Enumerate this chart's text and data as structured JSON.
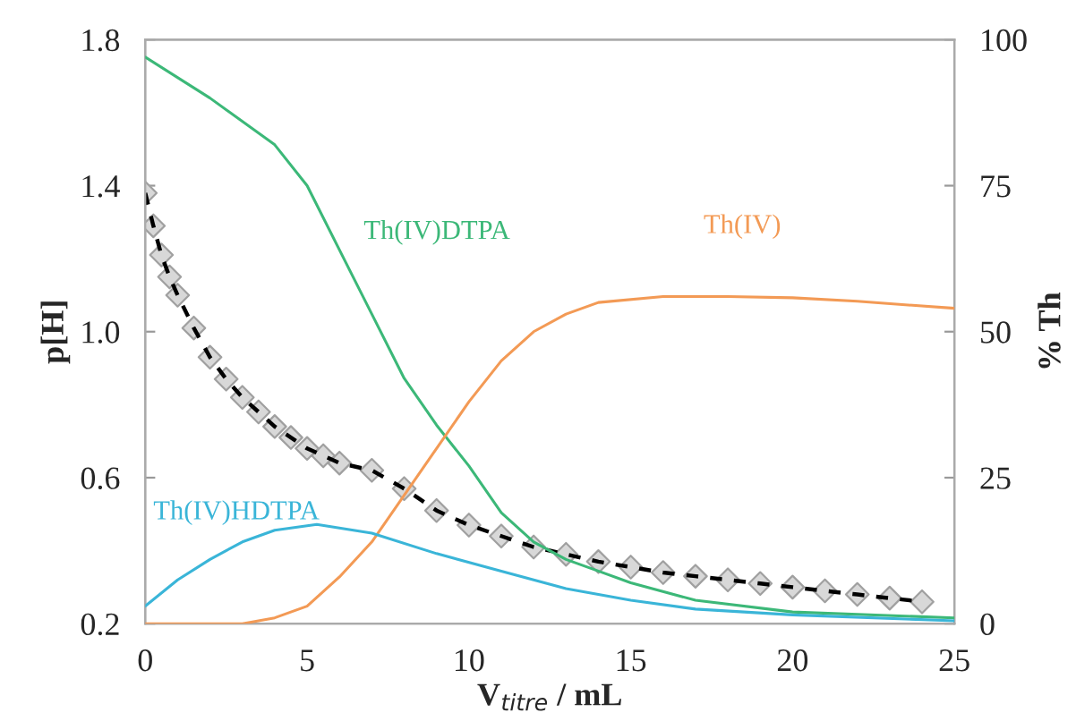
{
  "chart_data": {
    "type": "line",
    "xlabel": "V$_{titre}$ / mL",
    "ylabel": "p[H]",
    "y2label": "% Th",
    "xlim": [
      0,
      25
    ],
    "xticks": [
      0,
      5,
      10,
      15,
      20,
      25
    ],
    "ylim": [
      0.2,
      1.8
    ],
    "yticks": [
      0.2,
      0.6,
      {
        "value": 1.0,
        "label": "1.0"
      },
      1.4,
      1.8
    ],
    "y2lim": [
      0,
      100
    ],
    "y2ticks": [
      0,
      25,
      50,
      75,
      100
    ],
    "grid": false,
    "series": [
      {
        "type": "scatter",
        "marker": "diamond",
        "color": "#a0a0a0",
        "x": [
          0,
          0.25,
          0.5,
          0.75,
          1,
          1.5,
          2,
          2.5,
          3,
          3.5,
          4,
          4.5,
          5,
          5.5,
          6,
          7,
          8,
          9,
          10,
          11,
          12,
          13,
          14,
          15,
          16,
          17,
          18,
          19,
          20,
          21,
          22,
          23,
          24
        ],
        "values": [
          1.38,
          1.29,
          1.21,
          1.15,
          1.1,
          1.01,
          0.93,
          0.87,
          0.82,
          0.78,
          0.74,
          0.71,
          0.68,
          0.66,
          0.64,
          0.62,
          0.57,
          0.51,
          0.47,
          0.44,
          0.41,
          0.39,
          0.37,
          0.355,
          0.34,
          0.33,
          0.32,
          0.31,
          0.3,
          0.29,
          0.28,
          0.27,
          0.26
        ]
      },
      {
        "line_style": "dashed",
        "color": "#000000",
        "x": [
          0,
          0.25,
          0.5,
          0.75,
          1,
          1.5,
          2,
          2.5,
          3,
          3.5,
          4,
          4.5,
          5,
          5.5,
          6,
          7,
          8,
          9,
          10,
          11,
          12,
          13,
          14,
          15,
          16,
          17,
          18,
          19,
          20,
          21,
          22,
          23,
          24
        ],
        "values": [
          1.38,
          1.29,
          1.21,
          1.15,
          1.1,
          1.01,
          0.93,
          0.87,
          0.82,
          0.78,
          0.74,
          0.71,
          0.68,
          0.66,
          0.64,
          0.62,
          0.57,
          0.51,
          0.47,
          0.44,
          0.41,
          0.39,
          0.37,
          0.355,
          0.34,
          0.33,
          0.32,
          0.31,
          0.3,
          0.29,
          0.28,
          0.27,
          0.26
        ]
      },
      {
        "name": "Th(IV)DTPA",
        "axis": "y2",
        "color": "#3cb878",
        "x": [
          0,
          2,
          4,
          5,
          6,
          7,
          8,
          9,
          10,
          11,
          12,
          13,
          14,
          15,
          17,
          20,
          25
        ],
        "values": [
          97,
          90,
          82,
          75,
          64,
          53,
          42,
          34,
          27,
          19,
          14,
          11,
          9,
          7,
          4,
          2,
          1
        ]
      },
      {
        "name": "Th(IV)",
        "axis": "y2",
        "color": "#f39a55",
        "x": [
          0,
          3,
          4,
          5,
          6,
          7,
          8,
          9,
          10,
          11,
          12,
          13,
          14,
          16,
          18,
          20,
          22,
          25
        ],
        "values": [
          0,
          0,
          1,
          3,
          8,
          14,
          22,
          30,
          38,
          45,
          50,
          53,
          55,
          56,
          56,
          55.8,
          55.2,
          54
        ]
      },
      {
        "name": "Th(IV)HDTPA",
        "axis": "y2",
        "color": "#3ab5d8",
        "x": [
          0,
          1,
          2,
          3,
          4,
          5.3,
          7,
          9,
          11,
          13,
          15,
          17,
          20,
          25
        ],
        "values": [
          3,
          7.5,
          11,
          14,
          16,
          17,
          15.5,
          12,
          9,
          6,
          4,
          2.5,
          1.5,
          0.5
        ]
      }
    ]
  }
}
